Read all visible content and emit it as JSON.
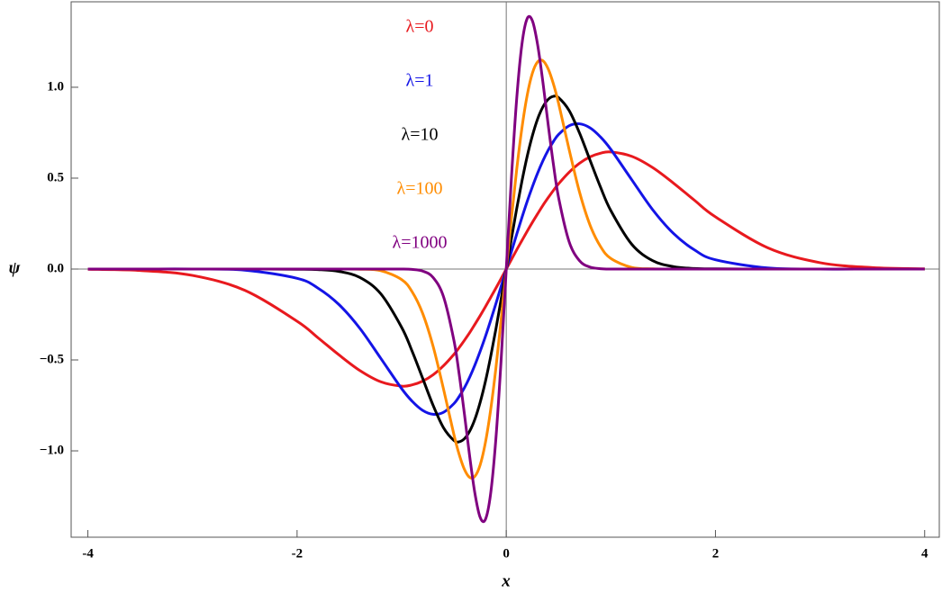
{
  "chart_data": {
    "type": "line",
    "xlabel": "x",
    "ylabel": "ψ",
    "x": [
      -4,
      -3.5,
      -3,
      -2.5,
      -2,
      -1.8,
      -1.6,
      -1.4,
      -1.2,
      -1,
      -0.9,
      -0.8,
      -0.7,
      -0.6,
      -0.5,
      -0.45,
      -0.4,
      -0.35,
      -0.3,
      -0.25,
      -0.2,
      -0.15,
      -0.1,
      -0.05,
      0,
      0.05,
      0.1,
      0.15,
      0.2,
      0.25,
      0.3,
      0.35,
      0.4,
      0.45,
      0.5,
      0.6,
      0.7,
      0.8,
      0.9,
      1,
      1.2,
      1.4,
      1.6,
      1.8,
      2,
      2.5,
      3,
      3.5,
      4
    ],
    "series": [
      {
        "name": "λ=0",
        "color": "#e8191e",
        "values": [
          -0.001,
          -0.008,
          -0.035,
          -0.117,
          -0.287,
          -0.378,
          -0.472,
          -0.558,
          -0.62,
          -0.644,
          -0.637,
          -0.617,
          -0.582,
          -0.532,
          -0.469,
          -0.432,
          -0.392,
          -0.35,
          -0.304,
          -0.257,
          -0.208,
          -0.157,
          -0.106,
          -0.053,
          0,
          0.053,
          0.106,
          0.157,
          0.208,
          0.257,
          0.304,
          0.35,
          0.392,
          0.432,
          0.469,
          0.532,
          0.582,
          0.617,
          0.637,
          0.644,
          0.62,
          0.558,
          0.472,
          0.378,
          0.287,
          0.117,
          0.035,
          0.008,
          0.001
        ]
      },
      {
        "name": "λ=1",
        "color": "#1414e6",
        "values": [
          0,
          0,
          0,
          -0.006,
          -0.051,
          -0.105,
          -0.195,
          -0.326,
          -0.491,
          -0.658,
          -0.727,
          -0.777,
          -0.799,
          -0.788,
          -0.74,
          -0.701,
          -0.653,
          -0.595,
          -0.528,
          -0.453,
          -0.372,
          -0.284,
          -0.192,
          -0.097,
          0,
          0.097,
          0.192,
          0.284,
          0.372,
          0.453,
          0.528,
          0.595,
          0.653,
          0.701,
          0.74,
          0.788,
          0.799,
          0.777,
          0.727,
          0.658,
          0.491,
          0.326,
          0.195,
          0.105,
          0.051,
          0.006,
          0,
          0,
          0
        ]
      },
      {
        "name": "λ=10",
        "color": "#000000",
        "values": [
          0,
          0,
          0,
          0,
          -0.001,
          -0.003,
          -0.013,
          -0.046,
          -0.136,
          -0.321,
          -0.452,
          -0.6,
          -0.749,
          -0.873,
          -0.943,
          -0.95,
          -0.933,
          -0.892,
          -0.826,
          -0.734,
          -0.62,
          -0.484,
          -0.333,
          -0.169,
          0,
          0.169,
          0.333,
          0.484,
          0.62,
          0.734,
          0.826,
          0.892,
          0.933,
          0.95,
          0.943,
          0.873,
          0.749,
          0.6,
          0.452,
          0.321,
          0.136,
          0.046,
          0.013,
          0.003,
          0.001,
          0,
          0,
          0,
          0
        ]
      },
      {
        "name": "λ=100",
        "color": "#ff8c00",
        "values": [
          0,
          0,
          0,
          0,
          0,
          0,
          0,
          -0.001,
          -0.009,
          -0.058,
          -0.125,
          -0.243,
          -0.424,
          -0.66,
          -0.912,
          -1.02,
          -1.102,
          -1.146,
          -1.14,
          -1.078,
          -0.956,
          -0.777,
          -0.549,
          -0.284,
          0,
          0.284,
          0.549,
          0.777,
          0.956,
          1.078,
          1.14,
          1.146,
          1.102,
          1.02,
          0.912,
          0.66,
          0.424,
          0.243,
          0.125,
          0.058,
          0.009,
          0.001,
          0,
          0,
          0,
          0,
          0,
          0,
          0
        ]
      },
      {
        "name": "λ=1000",
        "color": "#800080",
        "values": [
          0,
          0,
          0,
          0,
          0,
          0,
          0,
          0,
          0,
          0,
          -0.002,
          -0.011,
          -0.046,
          -0.152,
          -0.394,
          -0.579,
          -0.798,
          -1.029,
          -1.233,
          -1.365,
          -1.378,
          -1.238,
          -0.939,
          -0.508,
          0,
          0.508,
          0.939,
          1.238,
          1.378,
          1.365,
          1.233,
          1.029,
          0.798,
          0.579,
          0.394,
          0.152,
          0.046,
          0.011,
          0.002,
          0,
          0,
          0,
          0,
          0,
          0,
          0,
          0,
          0,
          0
        ]
      }
    ],
    "xlim": [
      -4.16,
      4.14
    ],
    "ylim": [
      -1.475,
      1.47
    ],
    "xticks": [
      -4,
      -2,
      0,
      2,
      4
    ],
    "yticks": [
      {
        "value": -1,
        "label": "−1.0"
      },
      {
        "value": -0.5,
        "label": "−0.5"
      },
      {
        "value": 0,
        "label": "0.0"
      },
      0.5,
      {
        "value": 1,
        "label": "1.0"
      }
    ]
  }
}
